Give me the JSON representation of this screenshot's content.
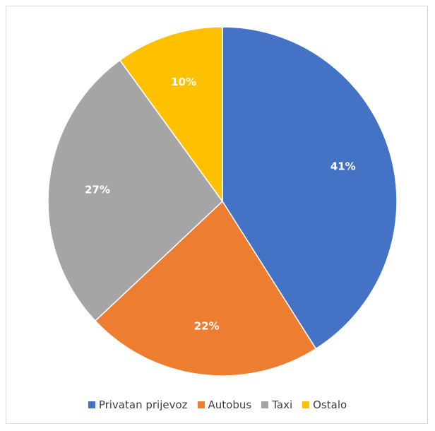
{
  "chart_data": {
    "type": "pie",
    "title": "",
    "categories": [
      "Privatan prijevoz",
      "Autobus",
      "Taxi",
      "Ostalo"
    ],
    "values": [
      41,
      22,
      27,
      10
    ],
    "labels": [
      "41%",
      "22%",
      "27%",
      "10%"
    ],
    "colors": [
      "#4472c4",
      "#ed7d31",
      "#a5a5a5",
      "#ffc000"
    ],
    "legend_position": "bottom",
    "start_angle": "12 o'clock",
    "direction": "clockwise"
  }
}
